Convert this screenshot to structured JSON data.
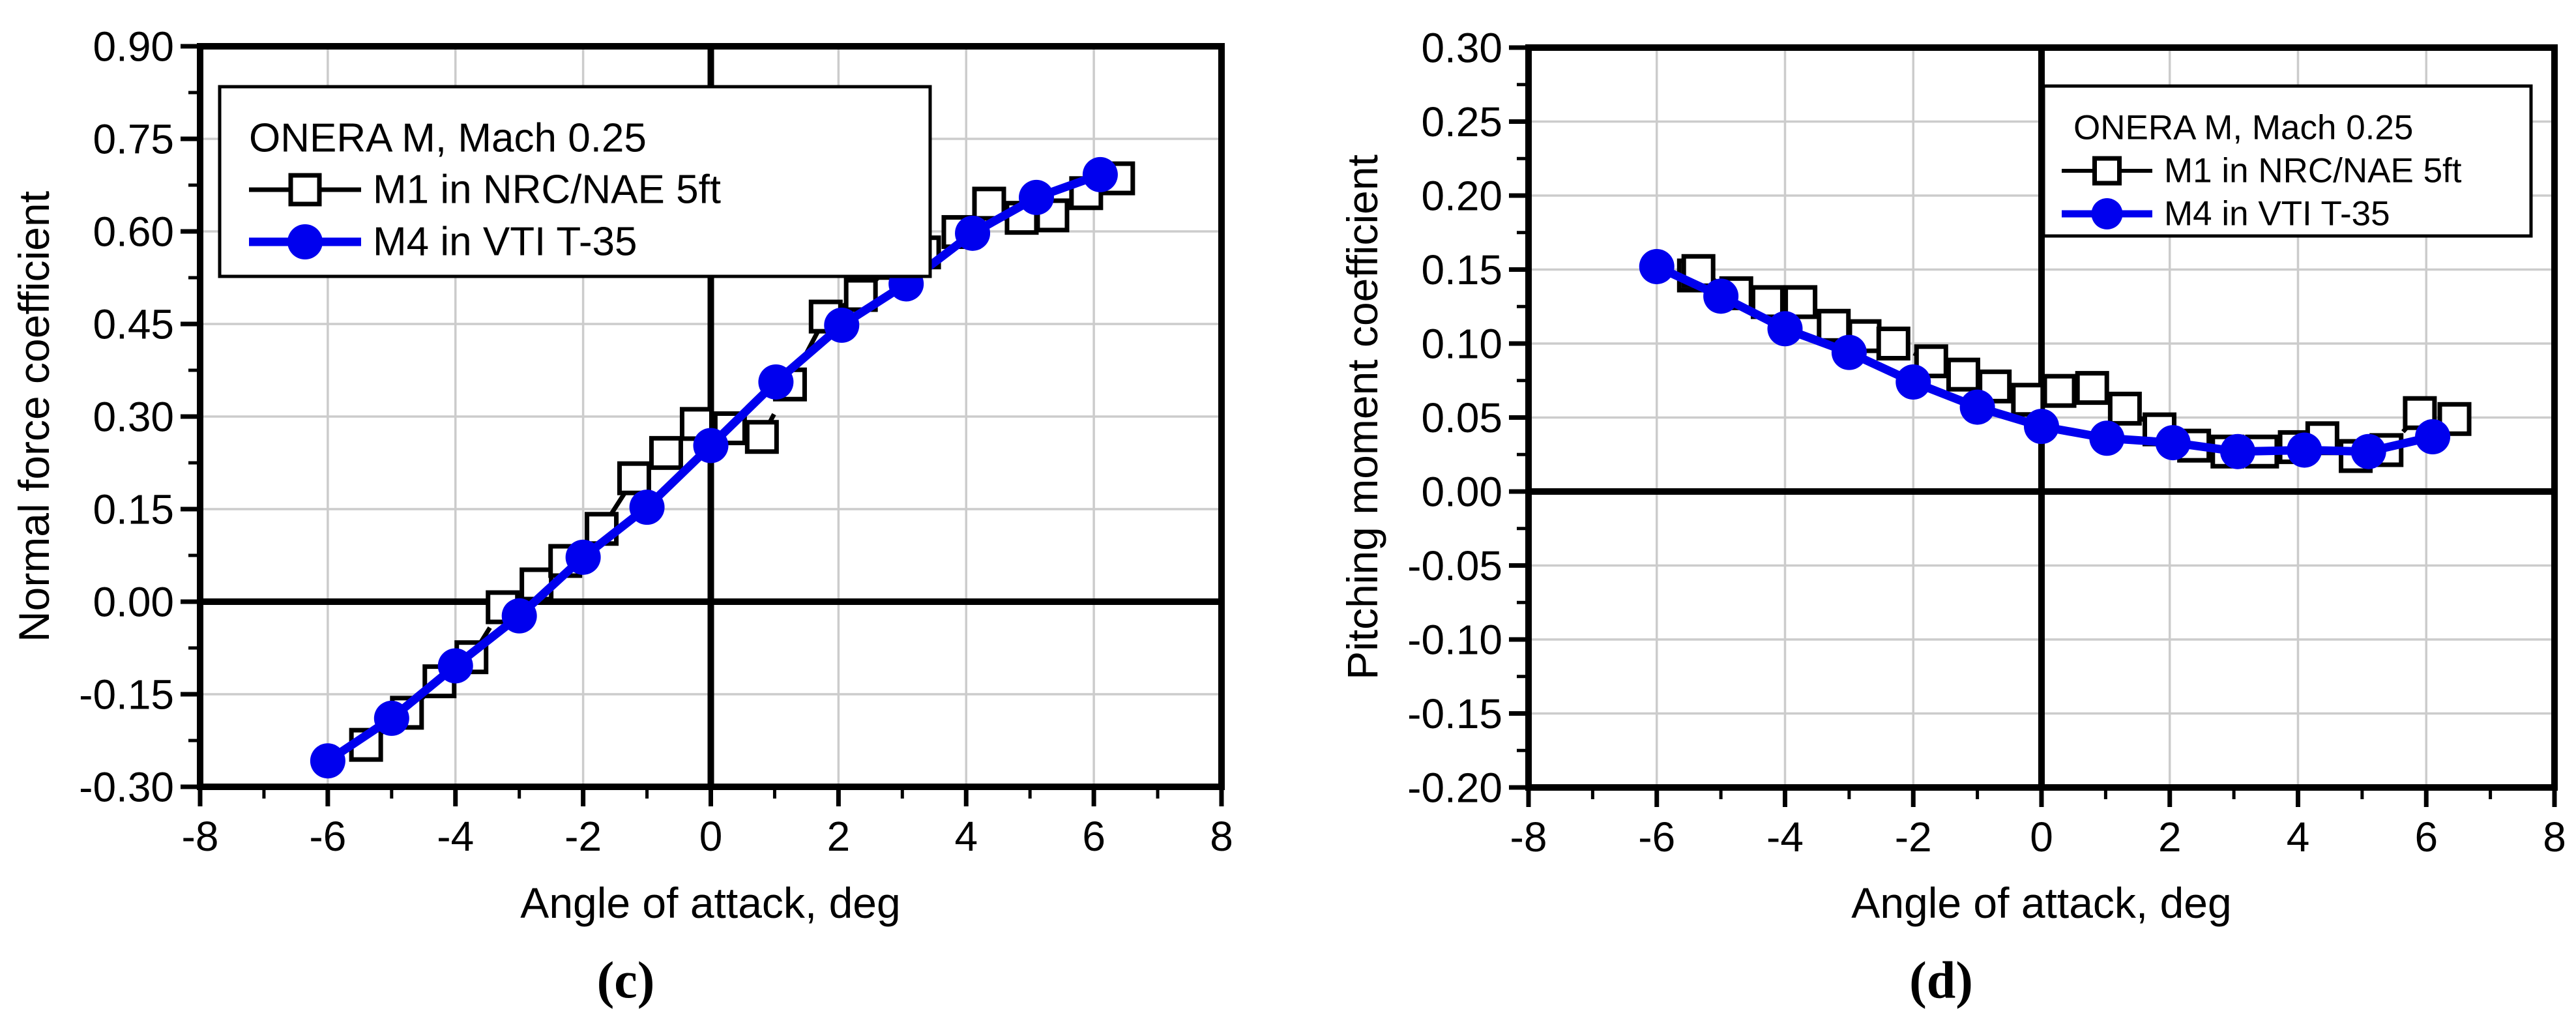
{
  "figure": {
    "background": "#FFFFFF",
    "panel_captions": [
      "(c)",
      "(d)"
    ]
  },
  "colors": {
    "m1": "#000000",
    "m4": "#0000EE",
    "grid": "#CCCCCC",
    "frame": "#000000",
    "background": "#FFFFFF"
  },
  "legend": {
    "title": "ONERA M, Mach 0.25",
    "m1_label": "M1 in NRC/NAE 5ft",
    "m4_label": "M4 in VTI T-35"
  },
  "chart_data": [
    {
      "type": "line",
      "panel": "(c)",
      "xlabel": "Angle of attack, deg",
      "ylabel": "Normal force coefficient",
      "xlim": [
        -8,
        8
      ],
      "ylim": [
        -0.3,
        0.9
      ],
      "xticks": [
        -8,
        -6,
        -4,
        -2,
        0,
        2,
        4,
        6,
        8
      ],
      "xtick_labels": [
        "-8",
        "-6",
        "-4",
        "-2",
        "0",
        "2",
        "4",
        "6",
        "8"
      ],
      "yticks": [
        -0.3,
        -0.15,
        0.0,
        0.15,
        0.3,
        0.45,
        0.6,
        0.75,
        0.9
      ],
      "ytick_labels": [
        "-0.30",
        "-0.15",
        "0.00",
        "0.15",
        "0.30",
        "0.45",
        "0.60",
        "0.75",
        "0.90"
      ],
      "grid": true,
      "zero_lines": true,
      "legend_position": "top-left",
      "legend_title": "ONERA M, Mach 0.25",
      "series": [
        {
          "name": "M1 in NRC/NAE 5ft",
          "marker": "open-square",
          "line_style": "dashed",
          "color": "#000000",
          "points": [
            [
              -5.4,
              -0.232
            ],
            [
              -4.76,
              -0.18
            ],
            [
              -4.25,
              -0.129
            ],
            [
              -3.75,
              -0.09
            ],
            [
              -3.26,
              -0.009
            ],
            [
              -2.73,
              0.028
            ],
            [
              -2.28,
              0.066
            ],
            [
              -1.71,
              0.118
            ],
            [
              -1.2,
              0.2
            ],
            [
              -0.7,
              0.241
            ],
            [
              -0.22,
              0.288
            ],
            [
              0.3,
              0.281
            ],
            [
              0.8,
              0.267
            ],
            [
              1.24,
              0.352
            ],
            [
              1.8,
              0.462
            ],
            [
              2.35,
              0.497
            ],
            [
              2.85,
              0.549
            ],
            [
              3.34,
              0.566
            ],
            [
              3.88,
              0.599
            ],
            [
              4.36,
              0.645
            ],
            [
              4.87,
              0.622
            ],
            [
              5.35,
              0.626
            ],
            [
              5.88,
              0.662
            ],
            [
              6.38,
              0.686
            ]
          ]
        },
        {
          "name": "M4 in VTI T-35",
          "marker": "filled-circle",
          "line_style": "solid",
          "color": "#0000EE",
          "points": [
            [
              -6,
              -0.258
            ],
            [
              -5,
              -0.189
            ],
            [
              -4,
              -0.104
            ],
            [
              -3,
              -0.023
            ],
            [
              -2,
              0.072
            ],
            [
              -1,
              0.153
            ],
            [
              0,
              0.253
            ],
            [
              1.02,
              0.356
            ],
            [
              2.05,
              0.448
            ],
            [
              3.06,
              0.515
            ],
            [
              4.1,
              0.597
            ],
            [
              5.1,
              0.655
            ],
            [
              6.1,
              0.692
            ]
          ]
        }
      ]
    },
    {
      "type": "line",
      "panel": "(d)",
      "xlabel": "Angle of attack, deg",
      "ylabel": "Pitching moment coefficient",
      "xlim": [
        -8,
        8
      ],
      "ylim": [
        -0.2,
        0.3
      ],
      "xticks": [
        -8,
        -6,
        -4,
        -2,
        0,
        2,
        4,
        6,
        8
      ],
      "xtick_labels": [
        "-8",
        "-6",
        "-4",
        "-2",
        "0",
        "2",
        "4",
        "6",
        "8"
      ],
      "yticks": [
        -0.2,
        -0.15,
        -0.1,
        -0.05,
        0.0,
        0.05,
        0.1,
        0.15,
        0.2,
        0.25,
        0.3
      ],
      "ytick_labels": [
        "-0.20",
        "-0.15",
        "-0.10",
        "-0.05",
        "0.00",
        "0.05",
        "0.10",
        "0.15",
        "0.20",
        "0.25",
        "0.30"
      ],
      "grid": true,
      "zero_lines": true,
      "legend_position": "top-right",
      "legend_title": "ONERA M, Mach 0.25",
      "series": [
        {
          "name": "M1 in NRC/NAE 5ft",
          "marker": "open-square",
          "line_style": "dashed",
          "color": "#000000",
          "points": [
            [
              -5.42,
              0.146
            ],
            [
              -5.35,
              0.149
            ],
            [
              -4.76,
              0.134
            ],
            [
              -4.27,
              0.128
            ],
            [
              -3.76,
              0.128
            ],
            [
              -3.24,
              0.112
            ],
            [
              -2.76,
              0.105
            ],
            [
              -2.31,
              0.1
            ],
            [
              -1.72,
              0.088
            ],
            [
              -1.22,
              0.079
            ],
            [
              -0.73,
              0.071
            ],
            [
              -0.21,
              0.062
            ],
            [
              0.28,
              0.068
            ],
            [
              0.79,
              0.07
            ],
            [
              1.3,
              0.056
            ],
            [
              1.84,
              0.042
            ],
            [
              2.38,
              0.031
            ],
            [
              2.9,
              0.027
            ],
            [
              3.44,
              0.027
            ],
            [
              3.95,
              0.03
            ],
            [
              4.38,
              0.036
            ],
            [
              4.9,
              0.024
            ],
            [
              5.38,
              0.028
            ],
            [
              5.9,
              0.053
            ],
            [
              6.44,
              0.049
            ]
          ]
        },
        {
          "name": "M4 in VTI T-35",
          "marker": "filled-circle",
          "line_style": "solid",
          "color": "#0000EE",
          "points": [
            [
              -6,
              0.152
            ],
            [
              -5,
              0.132
            ],
            [
              -4,
              0.11
            ],
            [
              -3,
              0.094
            ],
            [
              -2,
              0.074
            ],
            [
              -1,
              0.057
            ],
            [
              0,
              0.044
            ],
            [
              1.02,
              0.036
            ],
            [
              2.05,
              0.033
            ],
            [
              3.06,
              0.027
            ],
            [
              4.1,
              0.028
            ],
            [
              5.1,
              0.027
            ],
            [
              6.1,
              0.037
            ]
          ]
        }
      ]
    }
  ]
}
